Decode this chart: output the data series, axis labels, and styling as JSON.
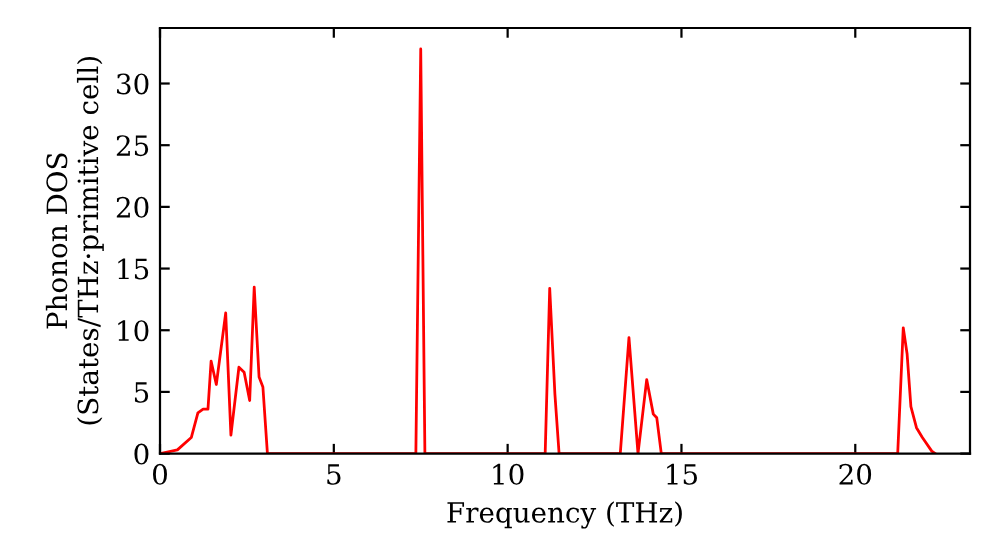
{
  "chart_data": {
    "type": "line",
    "xlabel": "Frequency (THz)",
    "ylabel": "Phonon DOS\n(States/THz·primitive cell)",
    "series": [
      {
        "color": "#ff0000",
        "x": [
          0,
          0.5,
          0.9,
          1.09,
          1.24,
          1.38,
          1.47,
          1.62,
          1.89,
          2.04,
          2.27,
          2.42,
          2.58,
          2.71,
          2.85,
          2.96,
          3.09,
          7.36,
          7.5,
          7.62,
          11.08,
          11.21,
          11.36,
          11.48,
          13.24,
          13.49,
          13.75,
          14.0,
          14.19,
          14.29,
          14.42,
          21.22,
          21.38,
          21.49,
          21.6,
          21.76,
          21.93,
          22.2,
          22.3
        ],
        "values": [
          0,
          0.3,
          1.3,
          3.3,
          3.6,
          3.6,
          7.5,
          5.6,
          11.4,
          1.5,
          7.0,
          6.6,
          4.3,
          13.5,
          6.2,
          5.4,
          0,
          0,
          32.8,
          0,
          0,
          13.4,
          4.8,
          0,
          0,
          9.4,
          0,
          6.0,
          3.2,
          2.9,
          0,
          0,
          10.2,
          8.1,
          3.8,
          2.1,
          1.3,
          0.2,
          0
        ]
      }
    ],
    "xlim": [
      0,
      23.3
    ],
    "ylim": [
      0,
      34.5
    ],
    "xticks": [
      0,
      5,
      10,
      15,
      20
    ],
    "yticks": [
      0,
      5,
      10,
      15,
      20,
      25,
      30
    ],
    "grid": false,
    "legend": false,
    "marker": "none",
    "line_style": "solid"
  }
}
